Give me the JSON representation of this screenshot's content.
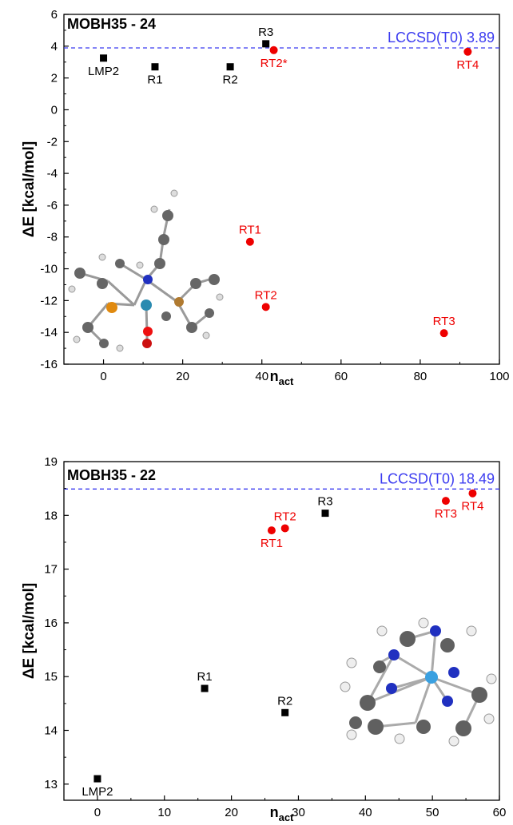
{
  "chart_data": [
    {
      "type": "scatter",
      "title": "MOBH35 - 24",
      "xlabel": "n",
      "xlabel_sub": "act",
      "ylabel": "ΔE [kcal/mol]",
      "xlim": [
        -10,
        100
      ],
      "ylim": [
        -16,
        6
      ],
      "xticks": [
        0,
        20,
        40,
        60,
        80,
        100
      ],
      "xtick_labels": [
        "0",
        "20",
        "40",
        "60",
        "80",
        "100"
      ],
      "yticks": [
        -16,
        -14,
        -12,
        -10,
        -8,
        -6,
        -4,
        -2,
        0,
        2,
        4,
        6
      ],
      "ytick_labels": [
        "-16",
        "-14",
        "-12",
        "-10",
        "-8",
        "-6",
        "-4",
        "-2",
        "0",
        "2",
        "4",
        "6"
      ],
      "reference": {
        "value": 3.89,
        "label": "LCCSD(T0) 3.89",
        "color": "#3b3bf0"
      },
      "series": [
        {
          "marker": "square",
          "color": "#000000",
          "points": [
            {
              "x": 0,
              "y": 3.25,
              "label": "LMP2",
              "pos": "below"
            },
            {
              "x": 13,
              "y": 2.7,
              "label": "R1",
              "pos": "below"
            },
            {
              "x": 32,
              "y": 2.7,
              "label": "R2",
              "pos": "below"
            },
            {
              "x": 41,
              "y": 4.15,
              "label": "R3",
              "pos": "above"
            }
          ]
        },
        {
          "marker": "circle",
          "color": "#ee0000",
          "points": [
            {
              "x": 43,
              "y": 3.75,
              "label": "RT2*",
              "pos": "below"
            },
            {
              "x": 92,
              "y": 3.65,
              "label": "RT4",
              "pos": "below"
            },
            {
              "x": 37,
              "y": -8.3,
              "label": "RT1",
              "pos": "above"
            },
            {
              "x": 41,
              "y": -12.4,
              "label": "RT2",
              "pos": "above"
            },
            {
              "x": 86,
              "y": -14.05,
              "label": "RT3",
              "pos": "above"
            }
          ]
        }
      ]
    },
    {
      "type": "scatter",
      "title": "MOBH35 - 22",
      "xlabel": "n",
      "xlabel_sub": "act",
      "ylabel": "ΔE [kcal/mol]",
      "xlim": [
        -5,
        60
      ],
      "ylim": [
        12.7,
        19
      ],
      "xticks": [
        0,
        10,
        20,
        30,
        40,
        50,
        60
      ],
      "xtick_labels": [
        "0",
        "10",
        "20",
        "30",
        "40",
        "50",
        "60"
      ],
      "yticks": [
        13,
        14,
        15,
        16,
        17,
        18,
        19
      ],
      "ytick_labels": [
        "13",
        "14",
        "15",
        "16",
        "17",
        "18",
        "19"
      ],
      "reference": {
        "value": 18.49,
        "label": "LCCSD(T0) 18.49",
        "color": "#3b3bf0"
      },
      "series": [
        {
          "marker": "square",
          "color": "#000000",
          "points": [
            {
              "x": 0,
              "y": 13.1,
              "label": "LMP2",
              "pos": "below"
            },
            {
              "x": 16,
              "y": 14.78,
              "label": "R1",
              "pos": "above"
            },
            {
              "x": 28,
              "y": 14.33,
              "label": "R2",
              "pos": "above"
            },
            {
              "x": 34,
              "y": 18.04,
              "label": "R3",
              "pos": "above"
            }
          ]
        },
        {
          "marker": "circle",
          "color": "#ee0000",
          "points": [
            {
              "x": 26,
              "y": 17.72,
              "label": "RT1",
              "pos": "below"
            },
            {
              "x": 28,
              "y": 17.76,
              "label": "RT2",
              "pos": "above"
            },
            {
              "x": 52,
              "y": 18.27,
              "label": "RT3",
              "pos": "below"
            },
            {
              "x": 56,
              "y": 18.41,
              "label": "RT4",
              "pos": "below"
            }
          ]
        }
      ]
    }
  ]
}
